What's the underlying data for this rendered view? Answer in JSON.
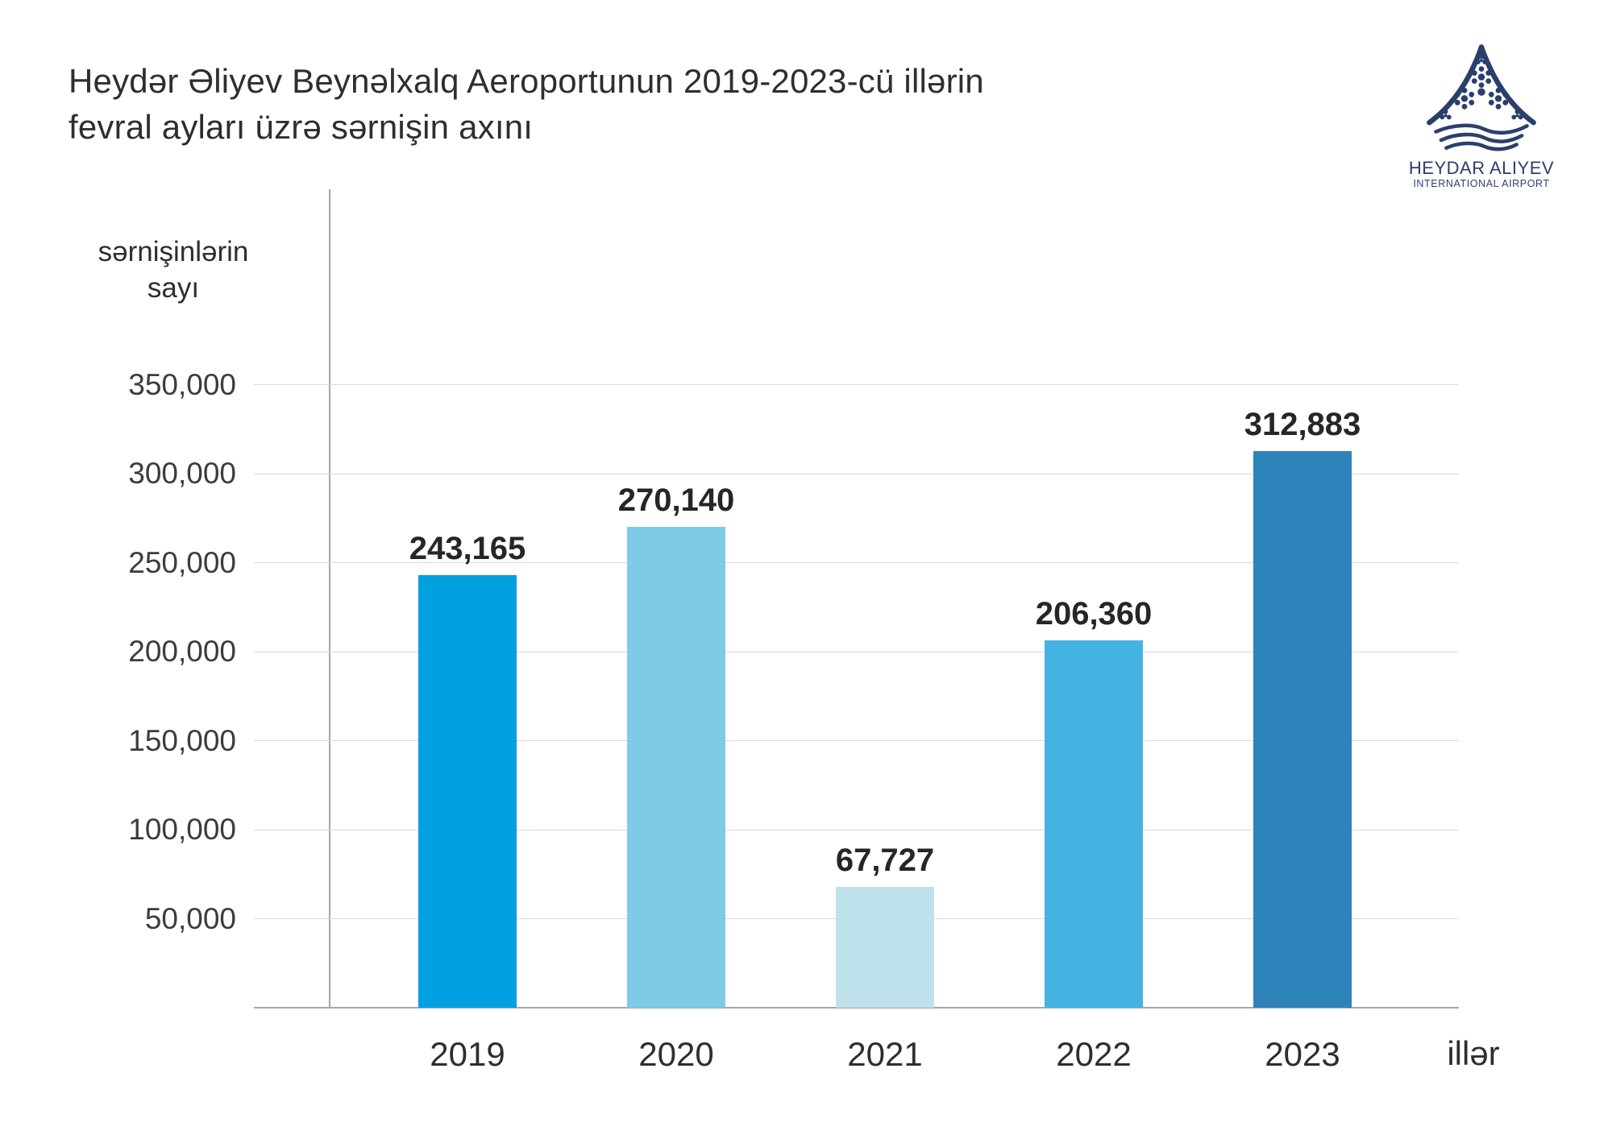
{
  "title": {
    "line1": "Heydər Əliyev Beynəlxalq Aeroportunun 2019-2023-cü illərin",
    "line2": "fevral ayları üzrə sərnişin axını"
  },
  "logo": {
    "title": "HEYDAR ALIYEV",
    "subtitle": "INTERNATIONAL AIRPORT",
    "color": "#2b3f6c"
  },
  "y_axis_title": {
    "line1": "sərnişinlərin",
    "line2": "sayı"
  },
  "chart_data": {
    "type": "bar",
    "title": "Heydər Əliyev Beynəlxalq Aeroportunun 2019-2023-cü illərin fevral ayları üzrə sərnişin axını",
    "xlabel": "illər",
    "ylabel": "sərnişinlərin sayı",
    "categories": [
      "2019",
      "2020",
      "2021",
      "2022",
      "2023"
    ],
    "values": [
      243165,
      270140,
      67727,
      206360,
      312883
    ],
    "value_labels": [
      "243,165",
      "270,140",
      "67,727",
      "206,360",
      "312,883"
    ],
    "bar_colors": [
      "#00a0e1",
      "#7ecbe8",
      "#bfe1eb",
      "#44b2e3",
      "#2e83bb"
    ],
    "yticks": [
      50000,
      100000,
      150000,
      200000,
      250000,
      300000,
      350000
    ],
    "ytick_labels": [
      "50,000",
      "100,000",
      "150,000",
      "200,000",
      "250,000",
      "300,000",
      "350,000"
    ],
    "ylim": [
      0,
      460000
    ],
    "grid": true,
    "legend": false
  },
  "colors": {
    "grid": "#d9d9d9",
    "axis": "#a6a6a6",
    "text": "#2e2e2e"
  }
}
